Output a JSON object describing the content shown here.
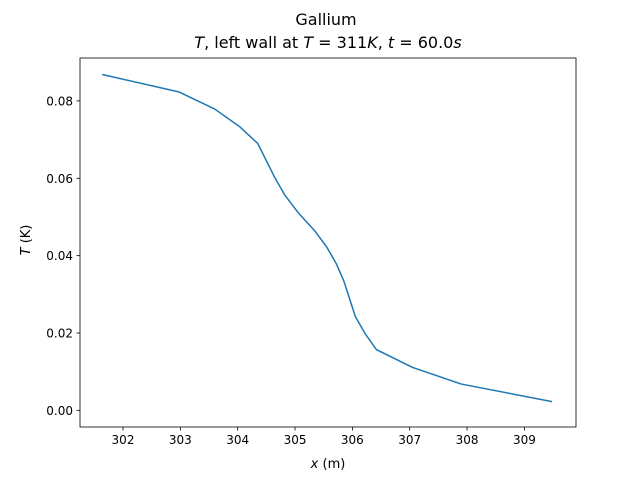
{
  "chart_data": {
    "type": "line",
    "title": "Gallium",
    "subtitle": {
      "parts": [
        {
          "text": "T",
          "italic": true
        },
        {
          "text": ", left wall at ",
          "italic": false
        },
        {
          "text": "T",
          "italic": true
        },
        {
          "text": " = 311",
          "italic": false
        },
        {
          "text": "K",
          "italic": true
        },
        {
          "text": ", ",
          "italic": false
        },
        {
          "text": "t",
          "italic": true
        },
        {
          "text": " = 60.0",
          "italic": false
        },
        {
          "text": "s",
          "italic": true
        }
      ]
    },
    "xlabel": {
      "var": "x",
      "unit": " (m)"
    },
    "ylabel": {
      "var": "T",
      "unit": " (K)"
    },
    "xlim": [
      301.25,
      309.9
    ],
    "ylim": [
      -0.0043,
      0.0911
    ],
    "xticks": [
      302,
      303,
      304,
      305,
      306,
      307,
      308,
      309
    ],
    "yticks": [
      0.0,
      0.02,
      0.04,
      0.06,
      0.08
    ],
    "ytick_labels": [
      "0.00",
      "0.02",
      "0.04",
      "0.06",
      "0.08"
    ],
    "grid": false,
    "series": [
      {
        "color": "#1f77b4",
        "x": [
          301.65,
          302.98,
          303.6,
          304.03,
          304.35,
          304.65,
          304.82,
          305.05,
          305.35,
          305.55,
          305.72,
          305.85,
          306.05,
          306.22,
          306.42,
          307.05,
          307.9,
          309.47
        ],
        "y": [
          0.0868,
          0.0823,
          0.0779,
          0.0734,
          0.069,
          0.0601,
          0.0557,
          0.0512,
          0.0463,
          0.0423,
          0.0379,
          0.0335,
          0.0243,
          0.0199,
          0.0157,
          0.0111,
          0.0068,
          0.0023
        ]
      }
    ]
  }
}
